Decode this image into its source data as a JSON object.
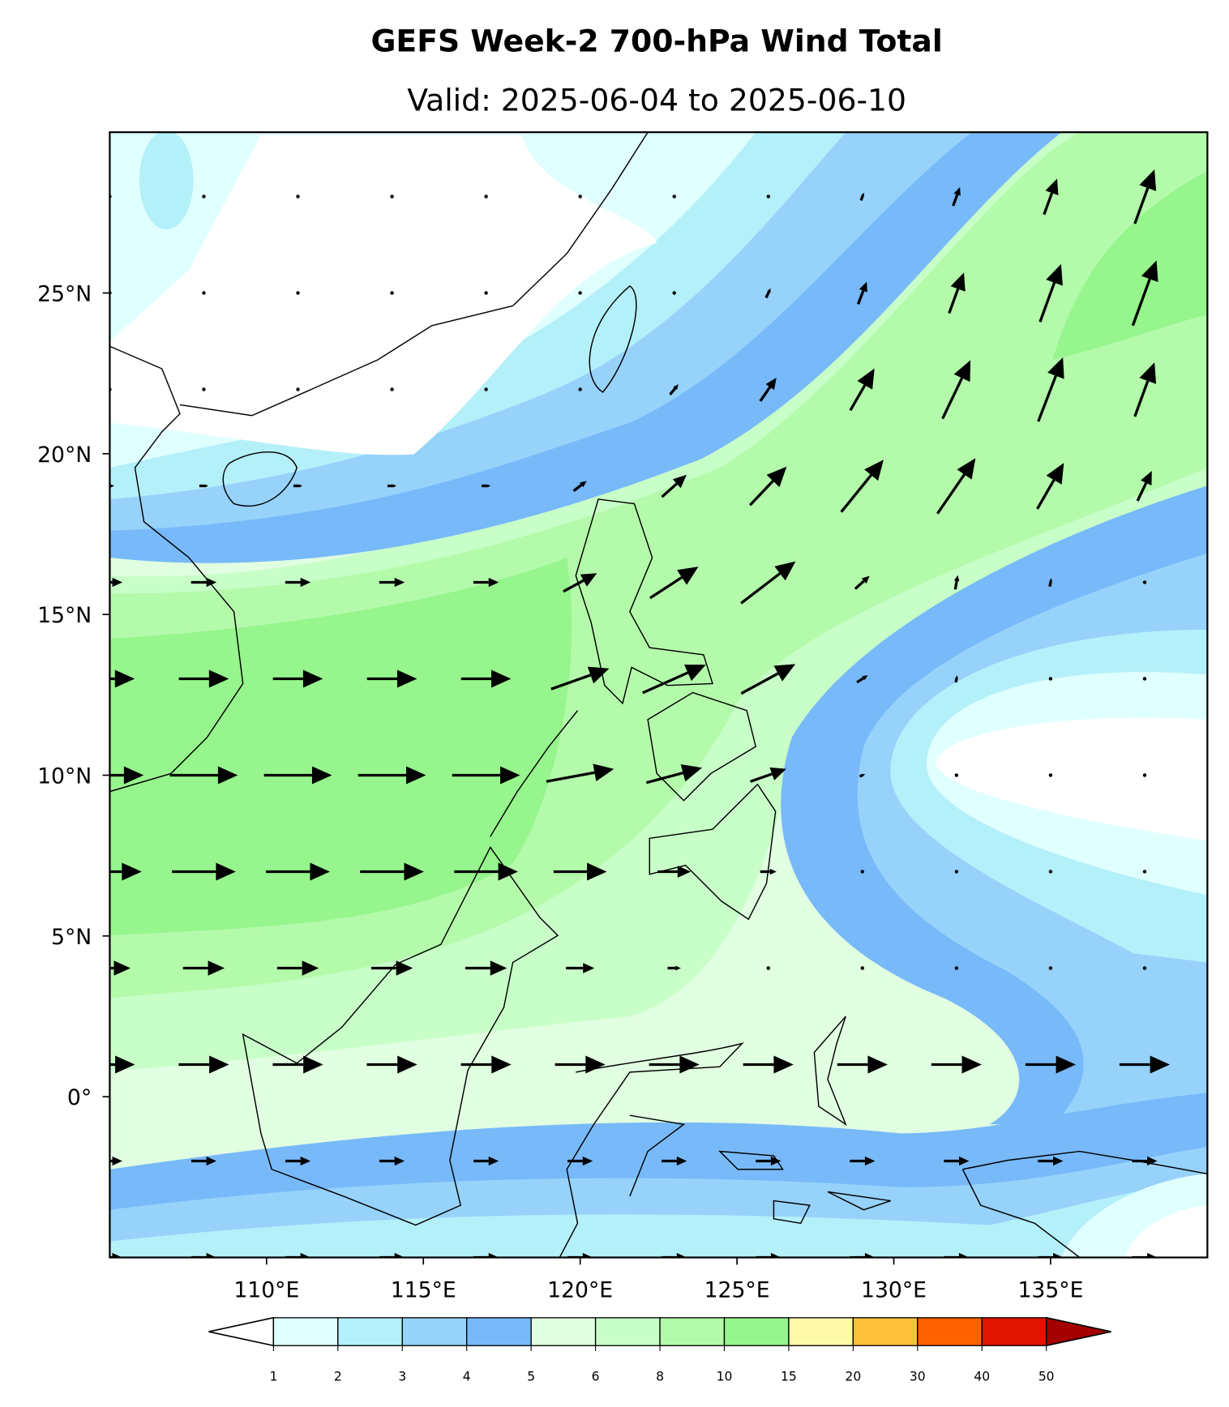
{
  "chart_data": {
    "type": "contour",
    "title": "GEFS Week-2 700-hPa Wind Total",
    "subtitle": "Valid: 2025-06-04 to 2025-06-10",
    "xlim": [
      105,
      140
    ],
    "ylim": [
      -5,
      30
    ],
    "xticks": [
      {
        "value": 110,
        "label": "110°E"
      },
      {
        "value": 115,
        "label": "115°E"
      },
      {
        "value": 120,
        "label": "120°E"
      },
      {
        "value": 125,
        "label": "125°E"
      },
      {
        "value": 130,
        "label": "130°E"
      },
      {
        "value": 135,
        "label": "135°E"
      }
    ],
    "yticks": [
      {
        "value": 0,
        "label": "0°"
      },
      {
        "value": 5,
        "label": "5°N"
      },
      {
        "value": 10,
        "label": "10°N"
      },
      {
        "value": 15,
        "label": "15°N"
      },
      {
        "value": 20,
        "label": "20°N"
      },
      {
        "value": 25,
        "label": "25°N"
      }
    ],
    "colorbar": {
      "levels": [
        1,
        2,
        3,
        4,
        5,
        6,
        8,
        10,
        15,
        20,
        30,
        40,
        50
      ],
      "colors": [
        "#e0ffff",
        "#b4f0fa",
        "#96d2fa",
        "#78b9fa",
        "#e1ffe1",
        "#c8ffc8",
        "#b4faab",
        "#96f58c",
        "#fffaaa",
        "#ffc03c",
        "#ff6000",
        "#e11400"
      ],
      "under_color": "#ffffff",
      "over_color": "#a50000"
    }
  }
}
